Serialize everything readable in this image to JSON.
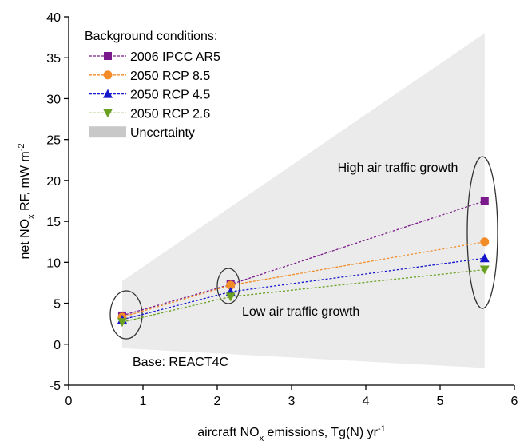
{
  "chart_data": {
    "type": "line",
    "xlabel": [
      {
        "text": "aircraft NO"
      },
      {
        "text": "x",
        "baseline": "sub"
      },
      {
        "text": " emissions, Tg(N) yr"
      },
      {
        "text": "-1",
        "baseline": "super"
      }
    ],
    "ylabel": [
      {
        "text": "net NO"
      },
      {
        "text": "x",
        "baseline": "sub"
      },
      {
        "text": " RF, mW m"
      },
      {
        "text": "-2",
        "baseline": "super"
      }
    ],
    "xlim": [
      0,
      6
    ],
    "xticks": [
      0,
      1,
      2,
      3,
      4,
      5,
      6
    ],
    "ylim": [
      -5,
      40
    ],
    "yticks": [
      -5,
      0,
      5,
      10,
      15,
      20,
      25,
      30,
      35,
      40
    ],
    "legend_title": "Background conditions:",
    "x": [
      0.72,
      2.18,
      5.6
    ],
    "series": [
      {
        "name": "2006 IPCC AR5",
        "color": "#7b1a8c",
        "marker": "square",
        "values": [
          3.5,
          7.3,
          17.5
        ]
      },
      {
        "name": "2050 RCP 8.5",
        "color": "#f28c28",
        "marker": "circle",
        "values": [
          3.3,
          7.2,
          12.5
        ]
      },
      {
        "name": "2050 RCP 4.5",
        "color": "#1515cc",
        "marker": "triangle-up",
        "values": [
          3.0,
          6.4,
          10.5
        ]
      },
      {
        "name": "2050 RCP 2.6",
        "color": "#6aa121",
        "marker": "triangle-down",
        "values": [
          2.7,
          5.8,
          9.1
        ]
      }
    ],
    "uncertainty": {
      "name": "Uncertainty",
      "color": "#ebebeb",
      "legend_color": "#c8c8c8",
      "x": [
        0.72,
        5.6
      ],
      "lower": [
        -0.5,
        -2.9
      ],
      "upper": [
        7.7,
        38
      ]
    },
    "annotations": [
      "High air traffic growth",
      "Low air traffic growth",
      "Base: REACT4C"
    ]
  }
}
